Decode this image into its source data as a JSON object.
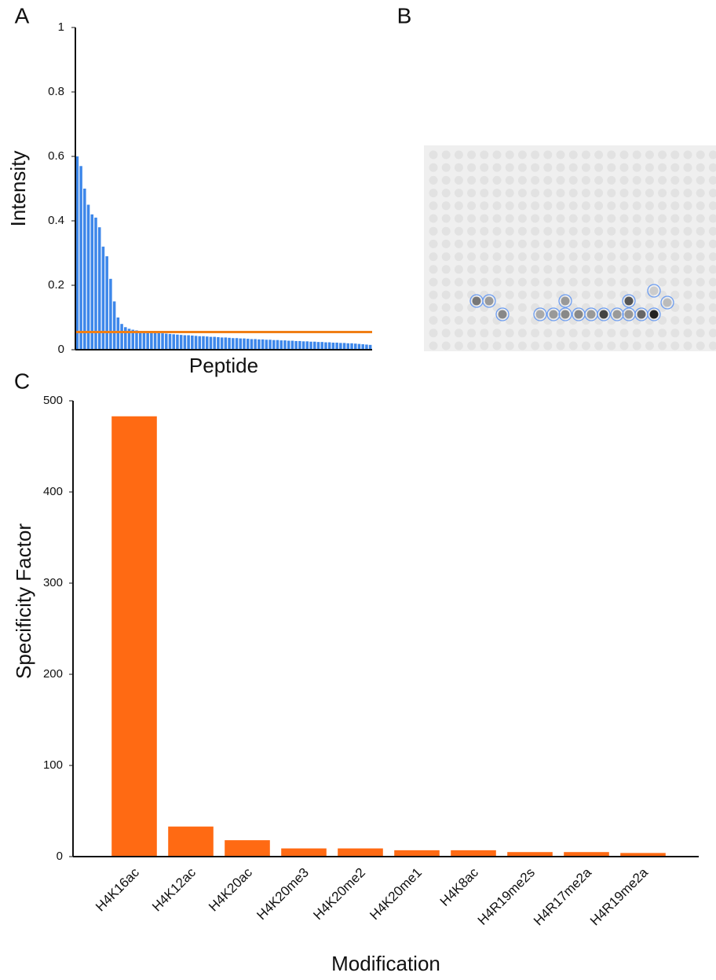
{
  "chart_data": [
    {
      "type": "bar",
      "panel_label": "A",
      "ylabel": "Intensity",
      "xlabel": "Peptide",
      "color": "#3d87ea",
      "categories": [
        null,
        null,
        null,
        null,
        null,
        null,
        null,
        null,
        null,
        null,
        null,
        null,
        null,
        null,
        null,
        null,
        null,
        null,
        null,
        null,
        null,
        null,
        null,
        null,
        null,
        null,
        null,
        null,
        null,
        null,
        null,
        null,
        null,
        null,
        null,
        null,
        null,
        null,
        null,
        null,
        null,
        null,
        null,
        null,
        null,
        null,
        null,
        null,
        null,
        null,
        null,
        null,
        null,
        null,
        null,
        null,
        null,
        null,
        null,
        null,
        null,
        null,
        null,
        null,
        null,
        null,
        null,
        null,
        null,
        null,
        null,
        null,
        null,
        null,
        null,
        null,
        null,
        null,
        null,
        null
      ],
      "values": [
        0.6,
        0.57,
        0.5,
        0.45,
        0.42,
        0.41,
        0.38,
        0.32,
        0.29,
        0.22,
        0.15,
        0.1,
        0.08,
        0.07,
        0.065,
        0.062,
        0.06,
        0.058,
        0.056,
        0.055,
        0.054,
        0.053,
        0.052,
        0.051,
        0.05,
        0.049,
        0.048,
        0.047,
        0.046,
        0.045,
        0.045,
        0.044,
        0.043,
        0.042,
        0.042,
        0.041,
        0.04,
        0.04,
        0.039,
        0.038,
        0.038,
        0.037,
        0.036,
        0.036,
        0.035,
        0.035,
        0.034,
        0.033,
        0.033,
        0.032,
        0.032,
        0.031,
        0.031,
        0.03,
        0.03,
        0.029,
        0.029,
        0.028,
        0.028,
        0.027,
        0.027,
        0.026,
        0.026,
        0.025,
        0.025,
        0.024,
        0.024,
        0.023,
        0.023,
        0.022,
        0.022,
        0.021,
        0.021,
        0.02,
        0.02,
        0.019,
        0.018,
        0.017,
        0.016,
        0.015
      ],
      "hline": 0.055,
      "hline_color": "#f07f16",
      "ylim": [
        0,
        1
      ],
      "yticks": [
        0,
        0.2,
        0.4,
        0.6,
        0.8,
        1
      ]
    },
    {
      "type": "image",
      "panel_label": "B"
    },
    {
      "type": "bar",
      "panel_label": "C",
      "ylabel": "Specificity Factor",
      "xlabel": "Modification",
      "color": "#ff6a13",
      "categories": [
        "H4K16ac",
        "H4K12ac",
        "H4K20ac",
        "H4K20me3",
        "H4K20me2",
        "H4K20me1",
        "H4K8ac",
        "H4R19me2s",
        "H4R17me2a",
        "H4R19me2a"
      ],
      "values": [
        483,
        33,
        18,
        9,
        9,
        7,
        7,
        5,
        5,
        4
      ],
      "ylim": [
        0,
        500
      ],
      "yticks": [
        0,
        100,
        200,
        300,
        400,
        500
      ]
    }
  ]
}
